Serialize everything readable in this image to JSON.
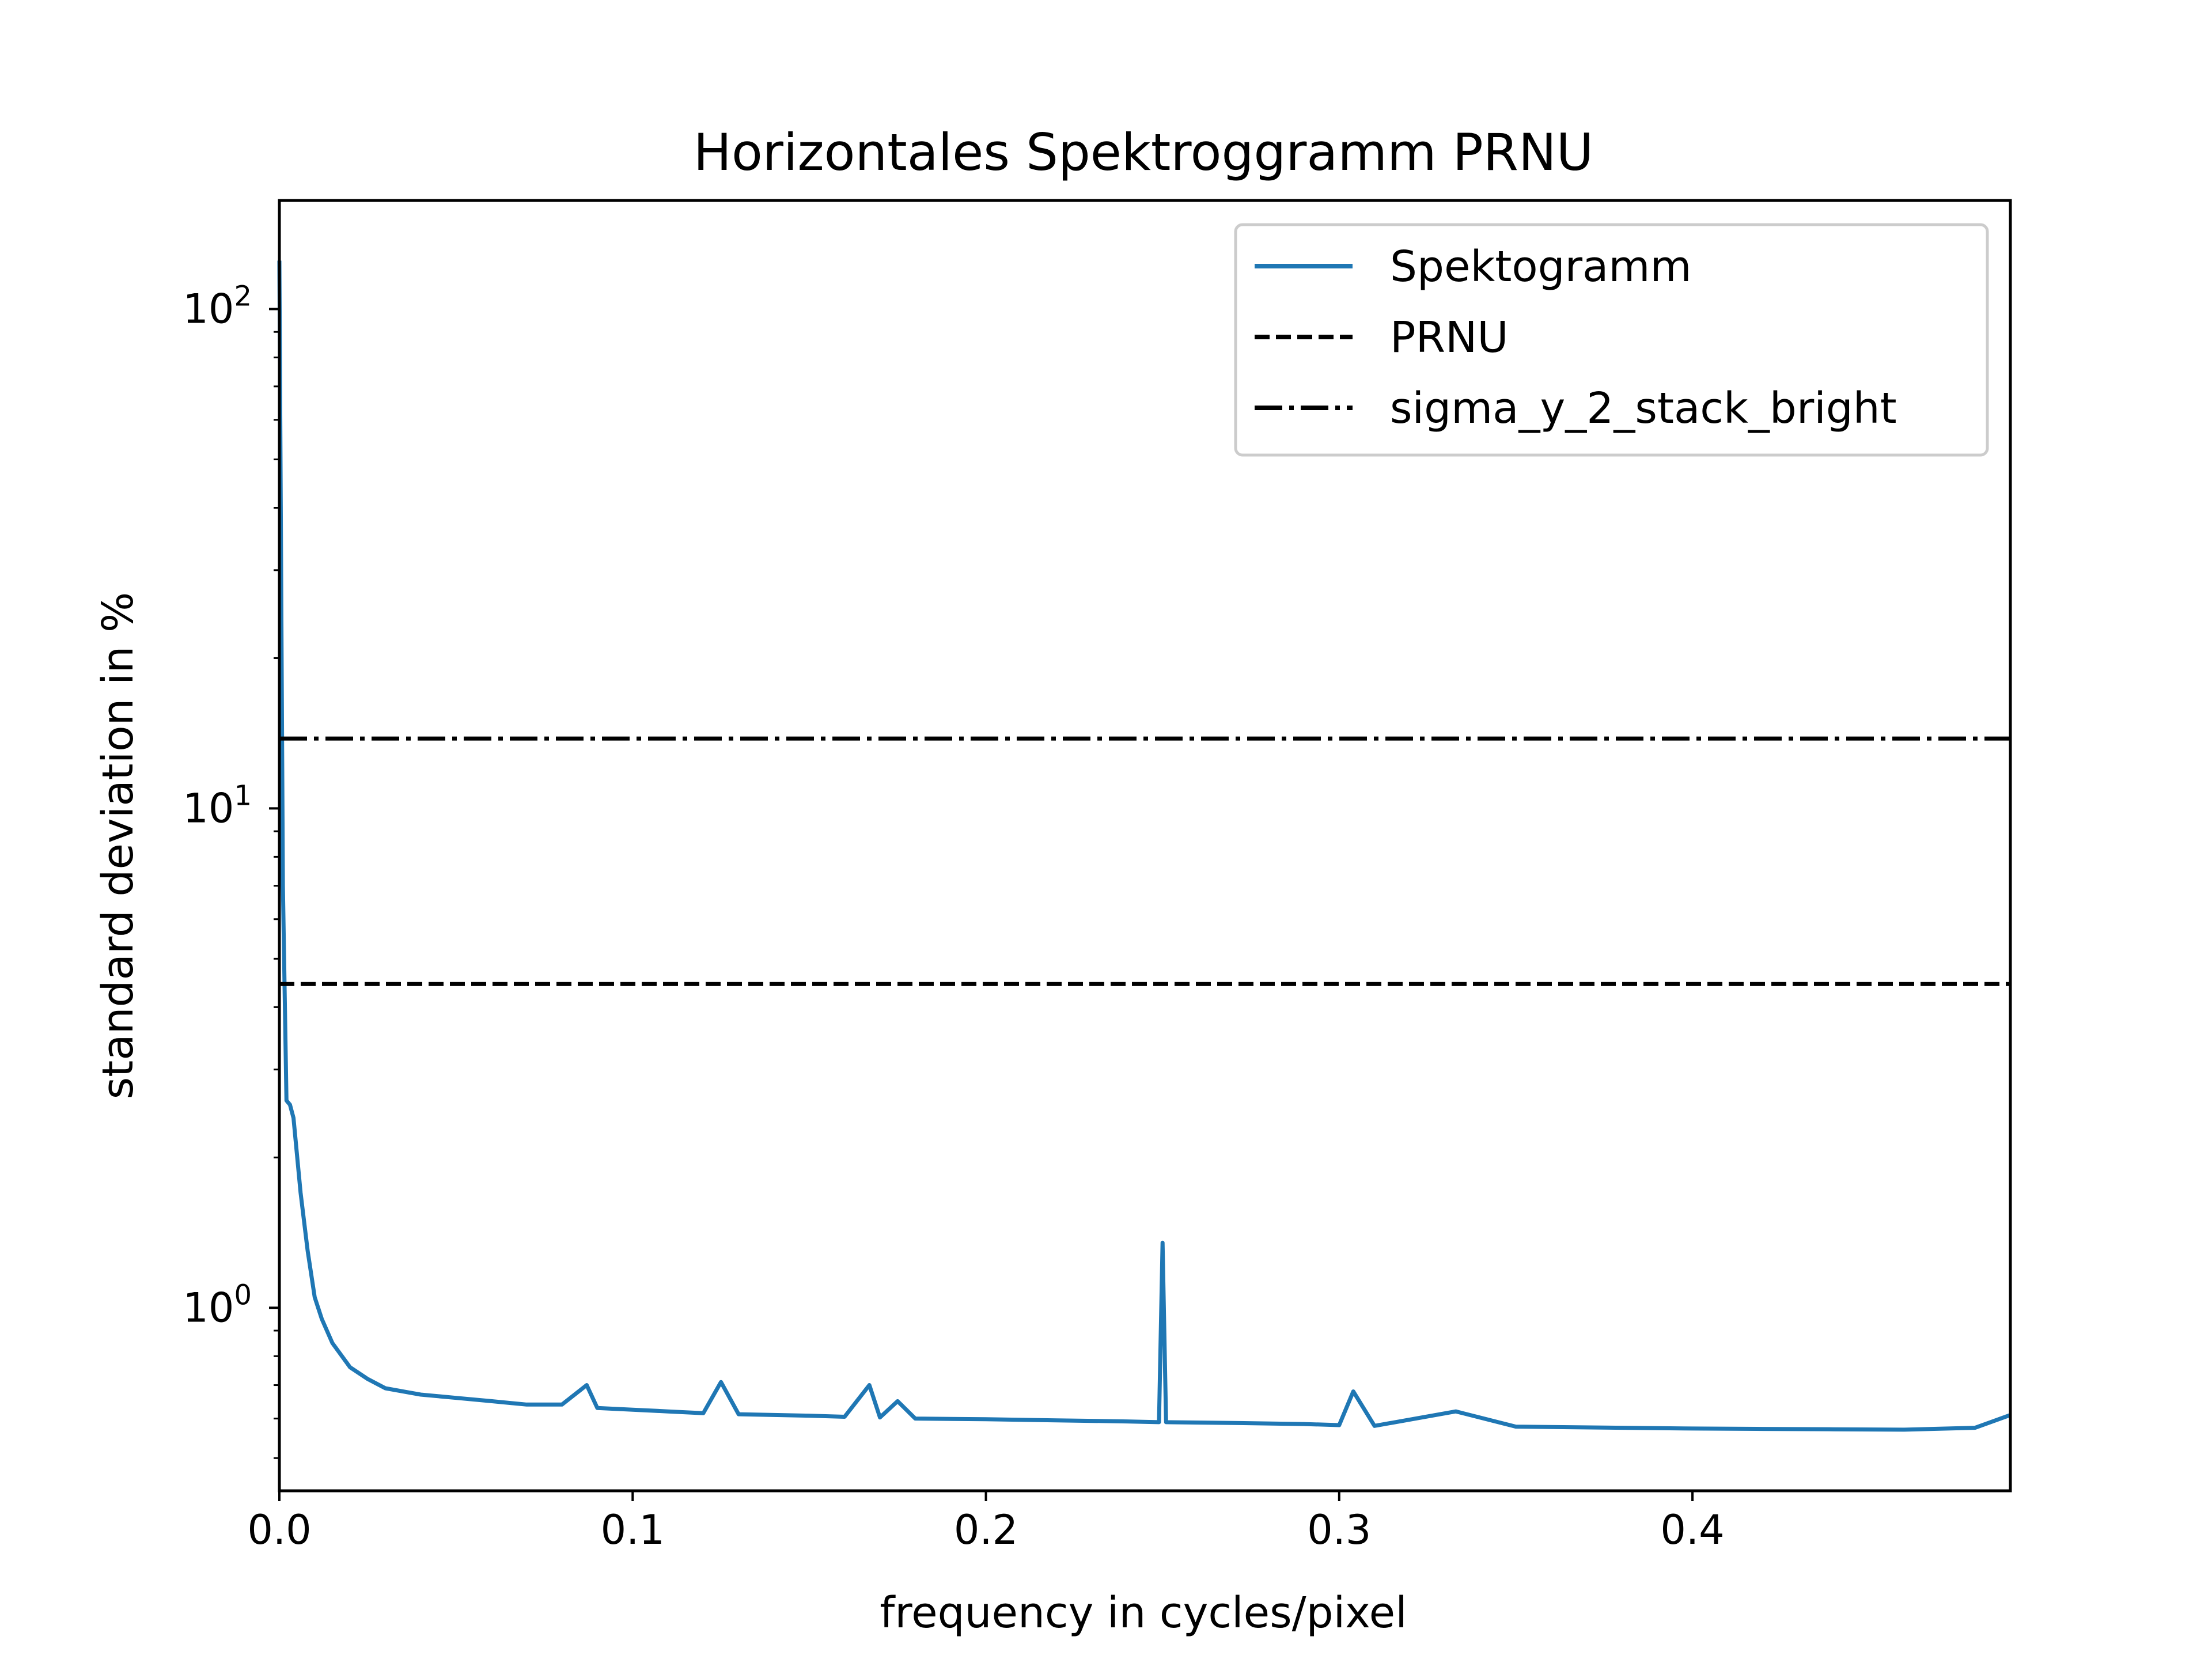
{
  "chart_data": {
    "type": "line",
    "title": "Horizontales Spektroggramm PRNU",
    "xlabel": "frequency in cycles/pixel",
    "ylabel": "standard deviation in %",
    "xlim": [
      0.0,
      0.49
    ],
    "ylim": [
      0.43,
      165
    ],
    "yscale": "log",
    "grid": false,
    "legend_position": "top-right",
    "x_ticks": [
      {
        "value": 0.0,
        "label": "0.0"
      },
      {
        "value": 0.1,
        "label": "0.1"
      },
      {
        "value": 0.2,
        "label": "0.2"
      },
      {
        "value": 0.3,
        "label": "0.3"
      },
      {
        "value": 0.4,
        "label": "0.4"
      }
    ],
    "y_ticks": [
      {
        "value": 1,
        "base": "10",
        "exp": "0"
      },
      {
        "value": 10,
        "base": "10",
        "exp": "1"
      },
      {
        "value": 100,
        "base": "10",
        "exp": "2"
      }
    ],
    "series": [
      {
        "name": "Spektogramm",
        "kind": "line",
        "color": "#1f77b4",
        "style": "solid",
        "x": [
          0.0,
          0.001,
          0.002,
          0.003,
          0.004,
          0.006,
          0.008,
          0.01,
          0.012,
          0.015,
          0.02,
          0.025,
          0.03,
          0.04,
          0.05,
          0.06,
          0.07,
          0.08,
          0.087,
          0.09,
          0.1,
          0.11,
          0.12,
          0.125,
          0.13,
          0.14,
          0.15,
          0.16,
          0.167,
          0.17,
          0.175,
          0.18,
          0.2,
          0.22,
          0.24,
          0.249,
          0.25,
          0.251,
          0.27,
          0.29,
          0.3,
          0.304,
          0.31,
          0.333,
          0.35,
          0.38,
          0.4,
          0.42,
          0.44,
          0.46,
          0.48,
          0.49
        ],
        "y": [
          125,
          7.0,
          2.6,
          2.55,
          2.4,
          1.7,
          1.3,
          1.05,
          0.95,
          0.85,
          0.76,
          0.72,
          0.69,
          0.67,
          0.66,
          0.65,
          0.64,
          0.64,
          0.7,
          0.63,
          0.625,
          0.62,
          0.615,
          0.71,
          0.612,
          0.61,
          0.608,
          0.605,
          0.7,
          0.603,
          0.65,
          0.6,
          0.598,
          0.595,
          0.592,
          0.59,
          1.35,
          0.59,
          0.588,
          0.585,
          0.582,
          0.68,
          0.58,
          0.62,
          0.578,
          0.575,
          0.573,
          0.572,
          0.571,
          0.57,
          0.575,
          0.61
        ]
      },
      {
        "name": "PRNU",
        "kind": "hline",
        "value": 4.45,
        "color": "#000000",
        "style": "dashed"
      },
      {
        "name": "sigma_y_2_stack_bright",
        "kind": "hline",
        "value": 13.8,
        "color": "#000000",
        "style": "dashdot"
      }
    ]
  }
}
